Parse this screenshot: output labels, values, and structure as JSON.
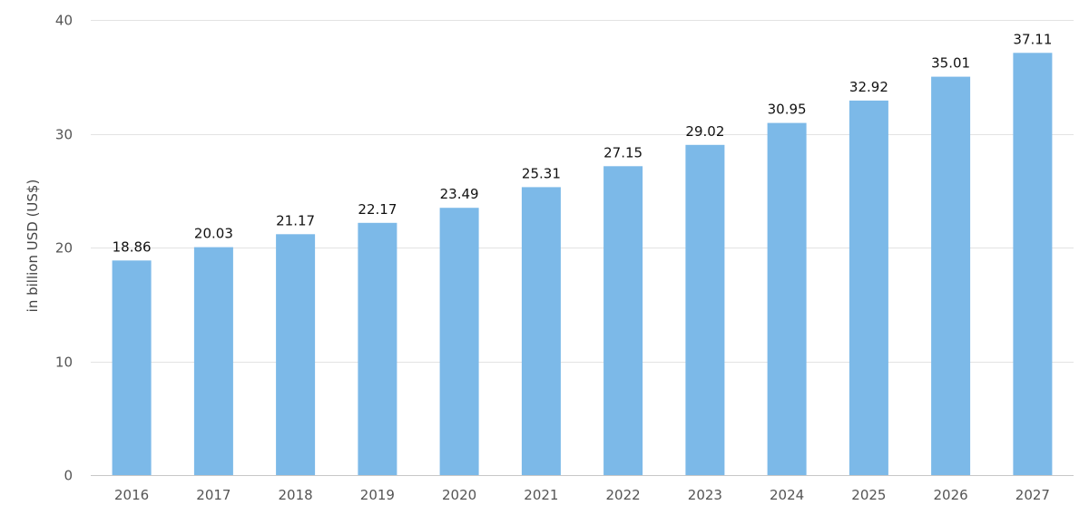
{
  "chart_data": {
    "type": "bar",
    "title": "",
    "xlabel": "",
    "ylabel": "in billion USD (US$)",
    "categories": [
      "2016",
      "2017",
      "2018",
      "2019",
      "2020",
      "2021",
      "2022",
      "2023",
      "2024",
      "2025",
      "2026",
      "2027"
    ],
    "series": [
      {
        "values": [
          18.86,
          20.03,
          21.17,
          22.17,
          23.49,
          25.31,
          27.15,
          29.02,
          30.95,
          32.92,
          35.01,
          37.11
        ]
      }
    ],
    "ylim": [
      0,
      40
    ],
    "yticks": [
      0,
      10,
      20,
      30,
      40
    ],
    "grid": true,
    "legend": "none",
    "bar_color": "#7cb9e8"
  }
}
